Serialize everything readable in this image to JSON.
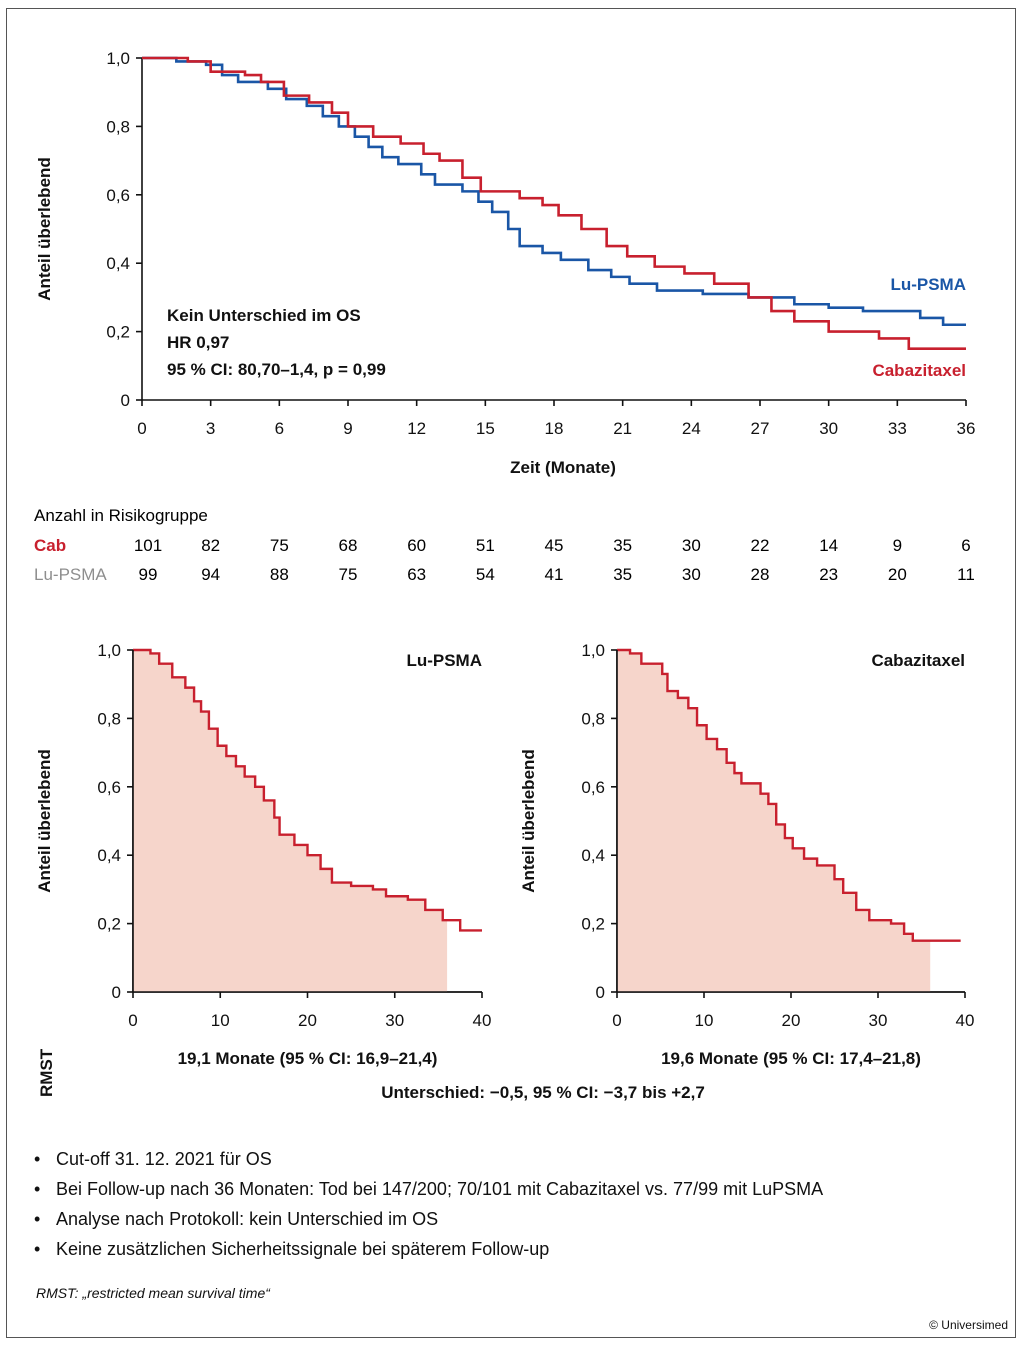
{
  "chart_data": [
    {
      "type": "line",
      "ylabel": "Anteil überlebend",
      "xlabel": "Zeit (Monate)",
      "x_ticks": [
        0,
        3,
        6,
        9,
        12,
        15,
        18,
        21,
        24,
        27,
        30,
        33,
        36
      ],
      "y_ticks": [
        "0",
        "0,2",
        "0,4",
        "0,6",
        "0,8",
        "1,0"
      ],
      "xlim": [
        0,
        36
      ],
      "ylim": [
        0,
        1
      ],
      "annotation": [
        "Kein Unterschied im OS",
        "HR 0,97",
        "95 % CI: 80,70–1,4, p = 0,99"
      ],
      "series": [
        {
          "name": "Lu-PSMA",
          "color": "#1a56a6",
          "points": [
            [
              0,
              1.0
            ],
            [
              1.5,
              0.99
            ],
            [
              2.8,
              0.98
            ],
            [
              3.5,
              0.95
            ],
            [
              4.2,
              0.93
            ],
            [
              5.5,
              0.91
            ],
            [
              6.3,
              0.88
            ],
            [
              7.2,
              0.86
            ],
            [
              7.9,
              0.83
            ],
            [
              8.6,
              0.8
            ],
            [
              9.3,
              0.77
            ],
            [
              9.9,
              0.74
            ],
            [
              10.5,
              0.71
            ],
            [
              11.2,
              0.69
            ],
            [
              12.2,
              0.66
            ],
            [
              12.8,
              0.63
            ],
            [
              14.0,
              0.61
            ],
            [
              14.7,
              0.58
            ],
            [
              15.3,
              0.55
            ],
            [
              16.0,
              0.5
            ],
            [
              16.5,
              0.45
            ],
            [
              17.5,
              0.43
            ],
            [
              18.3,
              0.41
            ],
            [
              19.5,
              0.38
            ],
            [
              20.5,
              0.36
            ],
            [
              21.3,
              0.34
            ],
            [
              22.5,
              0.32
            ],
            [
              24.5,
              0.31
            ],
            [
              26.5,
              0.3
            ],
            [
              28.5,
              0.28
            ],
            [
              30.0,
              0.27
            ],
            [
              31.5,
              0.26
            ],
            [
              34.0,
              0.24
            ],
            [
              35.0,
              0.22
            ],
            [
              36,
              0.22
            ]
          ]
        },
        {
          "name": "Cabazitaxel",
          "color": "#c8202e",
          "points": [
            [
              0,
              1.0
            ],
            [
              1.2,
              1.0
            ],
            [
              2.0,
              0.99
            ],
            [
              3.0,
              0.96
            ],
            [
              4.5,
              0.95
            ],
            [
              5.2,
              0.93
            ],
            [
              6.2,
              0.89
            ],
            [
              7.3,
              0.87
            ],
            [
              8.3,
              0.84
            ],
            [
              9.0,
              0.8
            ],
            [
              10.1,
              0.77
            ],
            [
              11.3,
              0.75
            ],
            [
              12.3,
              0.72
            ],
            [
              13.0,
              0.7
            ],
            [
              14.0,
              0.65
            ],
            [
              14.8,
              0.61
            ],
            [
              16.5,
              0.59
            ],
            [
              17.5,
              0.57
            ],
            [
              18.2,
              0.54
            ],
            [
              19.2,
              0.5
            ],
            [
              20.3,
              0.45
            ],
            [
              21.2,
              0.42
            ],
            [
              22.4,
              0.39
            ],
            [
              23.7,
              0.37
            ],
            [
              25.0,
              0.34
            ],
            [
              26.5,
              0.3
            ],
            [
              27.5,
              0.26
            ],
            [
              28.5,
              0.23
            ],
            [
              30.0,
              0.2
            ],
            [
              32.2,
              0.18
            ],
            [
              33.5,
              0.15
            ],
            [
              36,
              0.15
            ]
          ]
        }
      ]
    },
    {
      "type": "area",
      "title": "Lu-PSMA",
      "ylabel": "Anteil überlebend",
      "x_ticks": [
        0,
        10,
        20,
        30,
        40
      ],
      "y_ticks": [
        "0",
        "0,2",
        "0,4",
        "0,6",
        "0,8",
        "1,0"
      ],
      "xlim": [
        0,
        40
      ],
      "ylim": [
        0,
        1
      ],
      "shade_to_x": 36,
      "line_color": "#c8202e",
      "fill_color": "#f6d5cb",
      "points": [
        [
          0,
          1.0
        ],
        [
          2.0,
          0.99
        ],
        [
          3.0,
          0.96
        ],
        [
          4.5,
          0.92
        ],
        [
          6.0,
          0.89
        ],
        [
          7.0,
          0.85
        ],
        [
          7.8,
          0.82
        ],
        [
          8.7,
          0.77
        ],
        [
          9.7,
          0.72
        ],
        [
          10.7,
          0.69
        ],
        [
          11.8,
          0.66
        ],
        [
          12.8,
          0.63
        ],
        [
          14.0,
          0.6
        ],
        [
          15.0,
          0.56
        ],
        [
          16.2,
          0.51
        ],
        [
          16.8,
          0.46
        ],
        [
          18.5,
          0.43
        ],
        [
          20.0,
          0.4
        ],
        [
          21.5,
          0.36
        ],
        [
          22.8,
          0.32
        ],
        [
          25.0,
          0.31
        ],
        [
          27.5,
          0.3
        ],
        [
          29.0,
          0.28
        ],
        [
          31.5,
          0.27
        ],
        [
          33.5,
          0.24
        ],
        [
          35.5,
          0.21
        ],
        [
          37.5,
          0.18
        ],
        [
          40,
          0.18
        ]
      ],
      "rmst": "19,1 Monate (95 % CI: 16,9–21,4)"
    },
    {
      "type": "area",
      "title": "Cabazitaxel",
      "ylabel": "Anteil überlebend",
      "x_ticks": [
        0,
        10,
        20,
        30,
        40
      ],
      "y_ticks": [
        "0",
        "0,2",
        "0,4",
        "0,6",
        "0,8",
        "1,0"
      ],
      "xlim": [
        0,
        40
      ],
      "ylim": [
        0,
        1
      ],
      "shade_to_x": 36,
      "line_color": "#c8202e",
      "fill_color": "#f6d5cb",
      "points": [
        [
          0,
          1.0
        ],
        [
          1.5,
          0.99
        ],
        [
          2.8,
          0.96
        ],
        [
          5.2,
          0.93
        ],
        [
          5.8,
          0.88
        ],
        [
          7.0,
          0.86
        ],
        [
          8.2,
          0.83
        ],
        [
          9.2,
          0.78
        ],
        [
          10.3,
          0.74
        ],
        [
          11.5,
          0.71
        ],
        [
          12.6,
          0.67
        ],
        [
          13.5,
          0.64
        ],
        [
          14.3,
          0.61
        ],
        [
          16.5,
          0.58
        ],
        [
          17.4,
          0.55
        ],
        [
          18.3,
          0.49
        ],
        [
          19.3,
          0.45
        ],
        [
          20.2,
          0.42
        ],
        [
          21.5,
          0.39
        ],
        [
          23.0,
          0.37
        ],
        [
          25.0,
          0.33
        ],
        [
          26.0,
          0.29
        ],
        [
          27.5,
          0.24
        ],
        [
          29.0,
          0.21
        ],
        [
          31.5,
          0.2
        ],
        [
          33.0,
          0.17
        ],
        [
          34.0,
          0.15
        ],
        [
          36.5,
          0.15
        ],
        [
          39.5,
          0.15
        ]
      ],
      "rmst": "19,6 Monate (95 % CI: 17,4–21,8)"
    }
  ],
  "risk_table": {
    "title": "Anzahl in Risikogruppe",
    "rows": [
      {
        "label": "Cab",
        "color": "#c8202e",
        "values": [
          "101",
          "82",
          "75",
          "68",
          "60",
          "51",
          "45",
          "35",
          "30",
          "22",
          "14",
          "9",
          "6"
        ]
      },
      {
        "label": "Lu-PSMA",
        "color": "#8e8e8e",
        "values": [
          "99",
          "94",
          "88",
          "75",
          "63",
          "54",
          "41",
          "35",
          "30",
          "28",
          "23",
          "20",
          "11"
        ]
      }
    ]
  },
  "rmst_label": "RMST",
  "difference": "Unterschied: −0,5, 95 % CI: −3,7 bis +2,7",
  "bullets": [
    "Cut-off 31. 12. 2021 für OS",
    "Bei Follow-up nach 36 Monaten: Tod bei 147/200; 70/101 mit Cabazitaxel vs. 77/99 mit LuPSMA",
    "Analyse nach Protokoll: kein Unterschied im OS",
    "Keine zusätzlichen Sicherheitssignale bei späterem Follow-up"
  ],
  "footnote": "RMST: „restricted mean survival time“",
  "copyright": "© Universimed"
}
